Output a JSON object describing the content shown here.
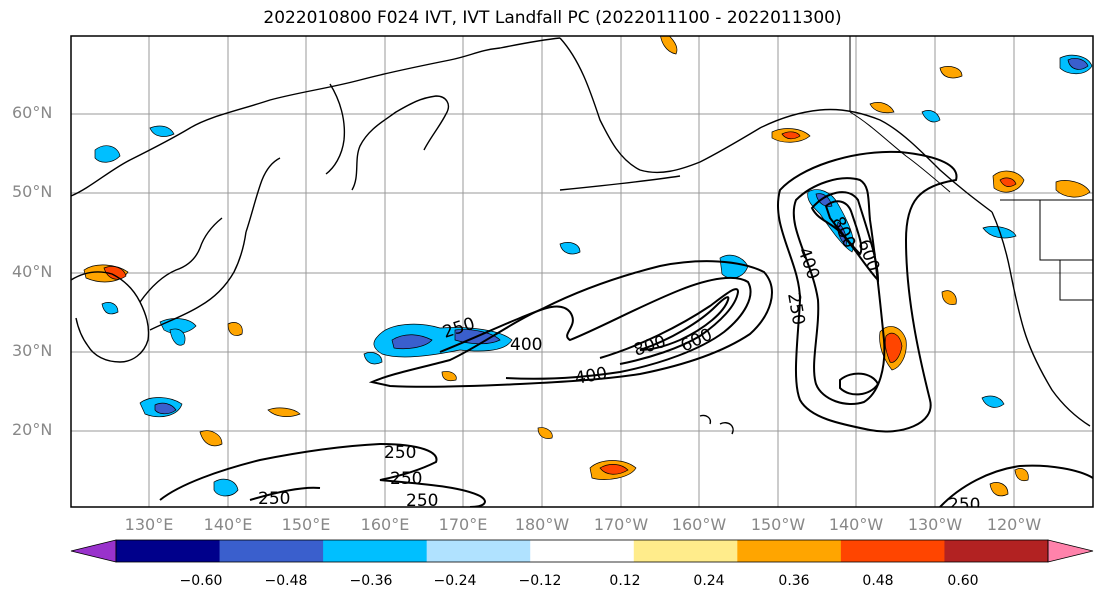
{
  "title": "2022010800 F024 IVT, IVT Landfall PC (2022011100 - 2022011300)",
  "map": {
    "lat_labels": [
      "60°N",
      "50°N",
      "40°N",
      "30°N",
      "20°N"
    ],
    "lon_labels": [
      "130°E",
      "140°E",
      "150°E",
      "160°E",
      "170°E",
      "180°W",
      "170°W",
      "160°W",
      "150°W",
      "140°W",
      "130°W",
      "120°W"
    ],
    "contour_labels": [
      "250",
      "400",
      "600",
      "800",
      "800",
      "600",
      "400",
      "250",
      "250",
      "250",
      "250",
      "250",
      "250"
    ],
    "contour_levels": [
      250,
      400,
      600,
      800
    ]
  },
  "colorbar": {
    "tick_labels": [
      "−0.60",
      "−0.48",
      "−0.36",
      "−0.24",
      "−0.12",
      "0.12",
      "0.24",
      "0.36",
      "0.48",
      "0.60"
    ],
    "colors": [
      "#9932cc",
      "#00008b",
      "#3a5fcd",
      "#00bfff",
      "#b0e2ff",
      "#ffffff",
      "#ffec8b",
      "#ffa500",
      "#ff4500",
      "#b22222",
      "#ff82ab"
    ]
  }
}
